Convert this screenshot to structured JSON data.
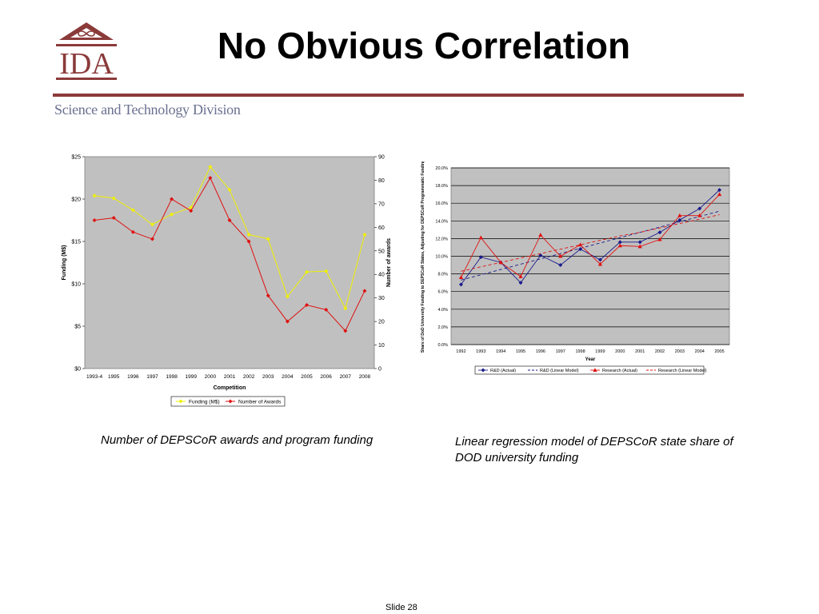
{
  "header": {
    "title": "No Obvious Correlation",
    "logo_text": "IDA",
    "division": "Science and Technology Division",
    "brand_color": "#8b3a3a"
  },
  "captions": {
    "left": "Number of DEPSCoR awards and program funding",
    "right": "Linear regression model of DEPSCoR state share of DOD university funding"
  },
  "footer": {
    "slide": "Slide 28"
  },
  "chart_data": [
    {
      "type": "line",
      "xlabel": "Competition",
      "ylabel": "Funding (M$)",
      "y2label": "Number of awards",
      "categories": [
        "1993-4",
        "1995",
        "1996",
        "1997",
        "1998",
        "1999",
        "2000",
        "2001",
        "2002",
        "2003",
        "2004",
        "2005",
        "2006",
        "2007",
        "2008"
      ],
      "ylim": [
        0,
        25
      ],
      "y_ticks": [
        "$0",
        "$5",
        "$10",
        "$15",
        "$20",
        "$25"
      ],
      "y2lim": [
        0,
        90
      ],
      "y2_ticks": [
        "0",
        "10",
        "20",
        "30",
        "40",
        "50",
        "60",
        "70",
        "80",
        "90"
      ],
      "legend_position": "bottom",
      "grid": false,
      "series": [
        {
          "name": "Funding (M$)",
          "axis": "left",
          "color": "#f0f000",
          "values": [
            20.4,
            20.1,
            18.7,
            17.0,
            18.2,
            19.0,
            23.8,
            21.1,
            15.8,
            15.3,
            8.5,
            11.4,
            11.5,
            7.1,
            15.8
          ]
        },
        {
          "name": "Number of Awards",
          "axis": "right",
          "color": "#e01010",
          "values": [
            63,
            64,
            58,
            55,
            72,
            67,
            81,
            63,
            54,
            31,
            20,
            27,
            25,
            16,
            33
          ]
        }
      ]
    },
    {
      "type": "line",
      "xlabel": "Year",
      "ylabel": "Share of DoD University Funding to DEPSCoR States, Adjusting for DEPSCoR Programmatic Funding",
      "categories": [
        "1992",
        "1993",
        "1994",
        "1995",
        "1996",
        "1997",
        "1998",
        "1999",
        "2000",
        "2001",
        "2002",
        "2003",
        "2004",
        "2005"
      ],
      "ylim": [
        0,
        20
      ],
      "y_ticks": [
        "0.0%",
        "2.0%",
        "4.0%",
        "6.0%",
        "8.0%",
        "10.0%",
        "12.0%",
        "14.0%",
        "16.0%",
        "18.0%",
        "20.0%"
      ],
      "legend_position": "bottom",
      "grid": true,
      "series": [
        {
          "name": "R&D (Actual)",
          "color": "#1a1a8c",
          "style": "solid",
          "marker": "diamond",
          "values": [
            6.8,
            9.9,
            9.3,
            7.0,
            10.1,
            9.0,
            10.8,
            9.6,
            11.6,
            11.6,
            12.7,
            14.1,
            15.4,
            17.5
          ]
        },
        {
          "name": "R&D (Linear Model)",
          "color": "#1a1a8c",
          "style": "dashed",
          "values": [
            7.3,
            7.9,
            8.5,
            9.1,
            9.7,
            10.3,
            10.9,
            11.5,
            12.1,
            12.7,
            13.3,
            13.9,
            14.5,
            15.1
          ]
        },
        {
          "name": "Research (Actual)",
          "color": "#e01010",
          "style": "solid",
          "marker": "triangle",
          "values": [
            7.6,
            12.1,
            9.3,
            7.7,
            12.4,
            10.0,
            11.3,
            9.1,
            11.2,
            11.1,
            11.9,
            14.6,
            14.6,
            17.0
          ]
        },
        {
          "name": "Research (Linear Model)",
          "color": "#e01010",
          "style": "dashed",
          "values": [
            8.3,
            8.8,
            9.3,
            9.8,
            10.3,
            10.8,
            11.3,
            11.8,
            12.3,
            12.7,
            13.2,
            13.7,
            14.2,
            14.7
          ]
        }
      ]
    }
  ]
}
